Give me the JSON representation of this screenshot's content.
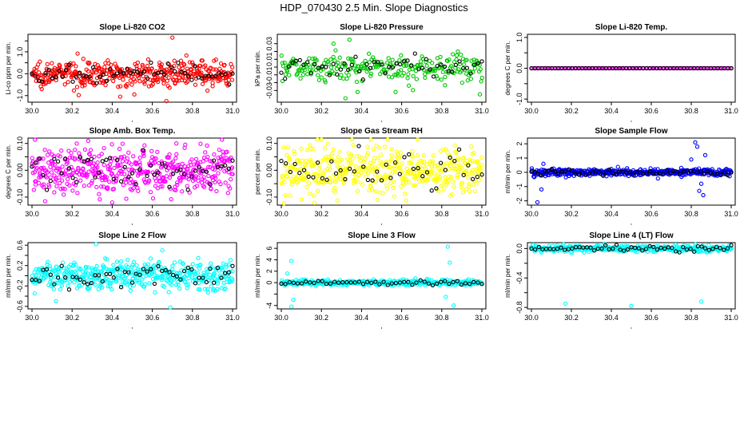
{
  "figure": {
    "main_title": "HDP_070430  2.5 Min. Slope Diagnostics"
  },
  "chart_data": [
    {
      "type": "scatter",
      "title": "Slope Li-820 CO2",
      "ylabel": "Li-co ppm per min.",
      "color": "#ff0000",
      "xlim": [
        29.98,
        31.02
      ],
      "ylim": [
        -1.3,
        1.8
      ],
      "xticks": [
        30.0,
        30.2,
        30.4,
        30.6,
        30.8,
        31.0
      ],
      "xtick_labels": [
        "30.0",
        "30.2",
        "30.4",
        "30.6",
        "30.8",
        "31.0"
      ],
      "yticks": [
        -1.0,
        -0.5,
        0.0,
        0.5,
        1.0,
        1.5
      ],
      "ytick_labels": [
        "-1.0",
        "0.0",
        "1.0"
      ],
      "ytick_labeled": [
        true,
        false,
        true,
        false,
        true,
        false
      ],
      "noise": 0.28,
      "dense_count": 420,
      "black_count": 60,
      "outliers": [
        [
          30.7,
          1.65
        ],
        [
          30.67,
          -1.25
        ],
        [
          30.44,
          -1.05
        ],
        [
          30.97,
          -0.45
        ],
        [
          30.85,
          0.6
        ]
      ]
    },
    {
      "type": "scatter",
      "title": "Slope Li-820 Pressure",
      "ylabel": "kPa per min.",
      "color": "#00c800",
      "xlim": [
        29.98,
        31.02
      ],
      "ylim": [
        -0.045,
        0.042
      ],
      "xticks": [
        30.0,
        30.2,
        30.4,
        30.6,
        30.8,
        31.0
      ],
      "xtick_labels": [
        "30.0",
        "30.2",
        "30.4",
        "30.6",
        "30.8",
        "31.0"
      ],
      "yticks": [
        -0.03,
        -0.02,
        -0.01,
        0.0,
        0.01,
        0.02,
        0.03
      ],
      "ytick_labels": [
        "-0.03",
        "-0.01",
        "0.01",
        "0.03"
      ],
      "ytick_labeled": [
        true,
        false,
        true,
        false,
        true,
        false,
        true
      ],
      "noise": 0.009,
      "dense_count": 260,
      "black_count": 55,
      "outliers": [
        [
          30.34,
          0.035
        ],
        [
          30.32,
          -0.04
        ],
        [
          30.38,
          -0.032
        ],
        [
          30.26,
          0.03
        ],
        [
          30.99,
          -0.035
        ],
        [
          30.88,
          0.02
        ]
      ]
    },
    {
      "type": "scatter",
      "title": "Slope Li-820 Temp.",
      "ylabel": "degrees C per min.",
      "color": "#ff00ff",
      "xlim": [
        29.98,
        31.02
      ],
      "ylim": [
        -1.1,
        1.1
      ],
      "xticks": [
        30.0,
        30.2,
        30.4,
        30.6,
        30.8,
        31.0
      ],
      "xtick_labels": [
        "30.0",
        "30.2",
        "30.4",
        "30.6",
        "30.8",
        "31.0"
      ],
      "yticks": [
        -1.0,
        -0.5,
        0.0,
        0.5,
        1.0
      ],
      "ytick_labels": [
        "-1.0",
        "0.0",
        "1.0"
      ],
      "ytick_labeled": [
        true,
        false,
        true,
        false,
        true
      ],
      "noise": 0.0,
      "dense_count": 120,
      "black_count": 60,
      "outliers": []
    },
    {
      "type": "scatter",
      "title": "Slope Amb. Box Temp.",
      "ylabel": "degrees C per min.",
      "color": "#ff00ff",
      "xlim": [
        29.98,
        31.02
      ],
      "ylim": [
        -0.13,
        0.12
      ],
      "xticks": [
        30.0,
        30.2,
        30.4,
        30.6,
        30.8,
        31.0
      ],
      "xtick_labels": [
        "30.0",
        "30.2",
        "30.4",
        "30.6",
        "30.8",
        "31.0"
      ],
      "yticks": [
        -0.1,
        -0.05,
        0.0,
        0.05,
        0.1
      ],
      "ytick_labels": [
        "-0.10",
        "0.00",
        "0.10"
      ],
      "ytick_labeled": [
        true,
        false,
        true,
        false,
        true
      ],
      "noise": 0.045,
      "dense_count": 480,
      "black_count": 55,
      "outliers": [
        [
          30.28,
          0.11
        ],
        [
          30.4,
          -0.12
        ],
        [
          30.72,
          0.1
        ]
      ]
    },
    {
      "type": "scatter",
      "title": "Slope Gas Stream RH",
      "ylabel": "percent per min.",
      "color": "#ffff00",
      "xlim": [
        29.98,
        31.02
      ],
      "ylim": [
        -0.13,
        0.12
      ],
      "xticks": [
        30.0,
        30.2,
        30.4,
        30.6,
        30.8,
        31.0
      ],
      "xtick_labels": [
        "30.0",
        "30.2",
        "30.4",
        "30.6",
        "30.8",
        "31.0"
      ],
      "yticks": [
        -0.1,
        -0.05,
        0.0,
        0.05,
        0.1
      ],
      "ytick_labels": [
        "-0.10",
        "0.00",
        "0.10"
      ],
      "ytick_labeled": [
        true,
        false,
        true,
        false,
        true
      ],
      "noise": 0.042,
      "dense_count": 460,
      "black_count": 45,
      "outliers": [
        [
          30.68,
          0.115
        ],
        [
          30.1,
          -0.11
        ]
      ]
    },
    {
      "type": "scatter",
      "title": "Slope Sample Flow",
      "ylabel": "ml/min per min.",
      "color": "#0000ff",
      "xlim": [
        29.98,
        31.02
      ],
      "ylim": [
        -2.3,
        2.4
      ],
      "xticks": [
        30.0,
        30.2,
        30.4,
        30.6,
        30.8,
        31.0
      ],
      "xtick_labels": [
        "30.0",
        "30.2",
        "30.4",
        "30.6",
        "30.8",
        "31.0"
      ],
      "yticks": [
        -2,
        -1,
        0,
        1,
        2
      ],
      "ytick_labels": [
        "-2",
        "-1",
        "0",
        "1",
        "2"
      ],
      "ytick_labeled": [
        true,
        true,
        true,
        true,
        true
      ],
      "noise": 0.12,
      "dense_count": 430,
      "black_count": 60,
      "outliers": [
        [
          30.82,
          2.1
        ],
        [
          30.83,
          1.8
        ],
        [
          30.85,
          -0.8
        ],
        [
          30.84,
          -1.3
        ],
        [
          30.86,
          -1.6
        ],
        [
          30.03,
          -2.1
        ],
        [
          30.05,
          -1.2
        ],
        [
          30.06,
          0.6
        ],
        [
          30.8,
          0.9
        ],
        [
          30.87,
          1.2
        ]
      ]
    },
    {
      "type": "scatter",
      "title": "Slope Line 2 Flow",
      "ylabel": "ml/min per min.",
      "color": "#00ffff",
      "xlim": [
        29.98,
        31.02
      ],
      "ylim": [
        -0.65,
        0.65
      ],
      "xticks": [
        30.0,
        30.2,
        30.4,
        30.6,
        30.8,
        31.0
      ],
      "xtick_labels": [
        "30.0",
        "30.2",
        "30.4",
        "30.6",
        "30.8",
        "31.0"
      ],
      "yticks": [
        -0.6,
        -0.4,
        -0.2,
        0.0,
        0.2,
        0.4,
        0.6
      ],
      "ytick_labels": [
        "-0.6",
        "-0.2",
        "0.2",
        "0.6"
      ],
      "ytick_labeled": [
        true,
        false,
        true,
        false,
        true,
        false,
        true
      ],
      "noise": 0.14,
      "dense_count": 460,
      "black_count": 55,
      "outliers": [
        [
          30.69,
          -0.62
        ],
        [
          30.32,
          0.62
        ],
        [
          30.12,
          -0.5
        ],
        [
          30.65,
          0.5
        ]
      ]
    },
    {
      "type": "scatter",
      "title": "Slope Line 3 Flow",
      "ylabel": "ml/min per min.",
      "color": "#00ffff",
      "xlim": [
        29.98,
        31.02
      ],
      "ylim": [
        -4.6,
        7.0
      ],
      "xticks": [
        30.0,
        30.2,
        30.4,
        30.6,
        30.8,
        31.0
      ],
      "xtick_labels": [
        "30.0",
        "30.2",
        "30.4",
        "30.6",
        "30.8",
        "31.0"
      ],
      "yticks": [
        -4,
        -2,
        0,
        2,
        4,
        6
      ],
      "ytick_labels": [
        "-4",
        "0",
        "2",
        "4",
        "6"
      ],
      "ytick_labeled": [
        true,
        false,
        true,
        true,
        true,
        true
      ],
      "noise": 0.25,
      "dense_count": 380,
      "black_count": 50,
      "outliers": [
        [
          30.05,
          3.8
        ],
        [
          30.05,
          -4.2
        ],
        [
          30.06,
          -3.0
        ],
        [
          30.83,
          6.3
        ],
        [
          30.84,
          3.5
        ],
        [
          30.82,
          -2.5
        ],
        [
          30.86,
          -4.0
        ],
        [
          30.03,
          1.6
        ]
      ]
    },
    {
      "type": "scatter",
      "title": "Slope Line 4 (LT) Flow",
      "ylabel": "ml/min per min.",
      "color": "#00ffff",
      "xlim": [
        29.98,
        31.02
      ],
      "ylim": [
        -0.82,
        0.08
      ],
      "xticks": [
        30.0,
        30.2,
        30.4,
        30.6,
        30.8,
        31.0
      ],
      "xtick_labels": [
        "30.0",
        "30.2",
        "30.4",
        "30.6",
        "30.8",
        "31.0"
      ],
      "yticks": [
        -0.8,
        -0.6,
        -0.4,
        -0.2,
        0.0
      ],
      "ytick_labels": [
        "-0.8",
        "-0.4",
        "0.0"
      ],
      "ytick_labeled": [
        true,
        false,
        true,
        false,
        true
      ],
      "noise": 0.022,
      "dense_count": 360,
      "black_count": 55,
      "outliers": [
        [
          30.17,
          -0.75
        ],
        [
          30.5,
          -0.78
        ],
        [
          30.85,
          -0.72
        ]
      ]
    }
  ]
}
